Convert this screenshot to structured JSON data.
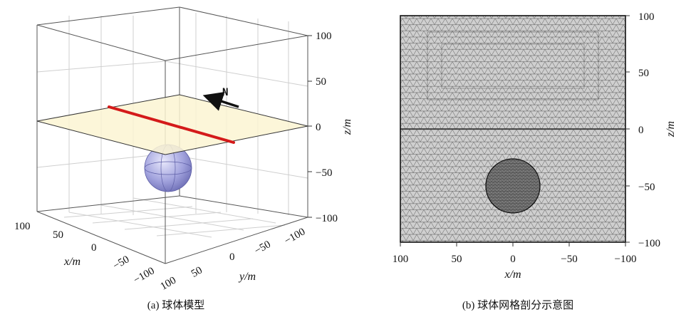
{
  "panel_a": {
    "caption": "(a) 球体模型",
    "z_ticks": [
      "100",
      "50",
      "0",
      "−50",
      "−100"
    ],
    "z_label": "z/m",
    "x_ticks": [
      "100",
      "50",
      "0",
      "−50",
      "−100"
    ],
    "x_label": "x/m",
    "y_ticks": [
      "100",
      "50",
      "0",
      "−50",
      "−100"
    ],
    "y_label": "y/m",
    "north_label": "N",
    "colors": {
      "plane_fill": "#fbf4d2",
      "survey_line": "#d41a1a",
      "sphere": "#9fa0d8",
      "grid": "#c8c8c8",
      "box": "#444444"
    }
  },
  "panel_b": {
    "caption": "(b) 球体网格剖分示意图",
    "z_ticks": [
      "100",
      "50",
      "0",
      "−50",
      "−100"
    ],
    "z_label": "z/m",
    "x_ticks": [
      "100",
      "50",
      "0",
      "−50",
      "−100"
    ],
    "x_label": "x/m",
    "colors": {
      "mesh_fill": "#c8c8c8",
      "mesh_line": "#4a4a4a",
      "sphere_fill": "#8a8a8a"
    }
  }
}
